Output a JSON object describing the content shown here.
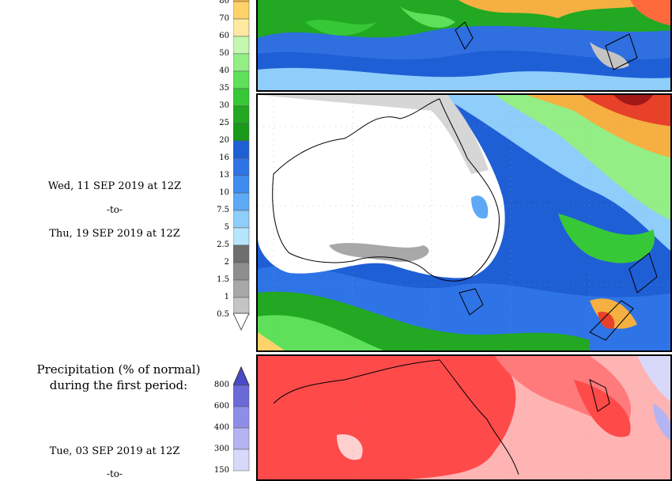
{
  "period_labels": {
    "start": "Wed, 11 SEP 2019 at 12Z",
    "sep": "-to-",
    "end": "Thu, 19 SEP 2019 at 12Z"
  },
  "precip_colorbar": {
    "ticks": [
      "80",
      "70",
      "60",
      "50",
      "40",
      "35",
      "30",
      "25",
      "20",
      "16",
      "13",
      "10",
      "7.5",
      "5",
      "2.5",
      "2",
      "1.5",
      "1",
      "0.5"
    ],
    "colors": [
      "#f5b041",
      "#ffd36a",
      "#ffe9a0",
      "#c6f7b0",
      "#93ee86",
      "#5fe05a",
      "#37c837",
      "#22a822",
      "#1a9a1a",
      "#1f5fd6",
      "#2f74e6",
      "#3f8cf0",
      "#5ea9f6",
      "#8fcdfb",
      "#b6e6fd",
      "#6e6e6e",
      "#8e8e8e",
      "#a8a8a8",
      "#c4c4c4"
    ]
  },
  "percent_section": {
    "title_line1": "Precipitation (% of normal)",
    "title_line2": "during the first period:",
    "start": "Tue, 03 SEP 2019 at 12Z",
    "sep": "-to-",
    "ticks": [
      "800",
      "600",
      "400",
      "300",
      "150"
    ],
    "colors": [
      "#6a6ad8",
      "#8e8ee8",
      "#b4b4f2",
      "#d8d8fa"
    ]
  },
  "map_icons": [
    "precip-map-top",
    "precip-map-middle",
    "percent-normal-map-bottom"
  ]
}
